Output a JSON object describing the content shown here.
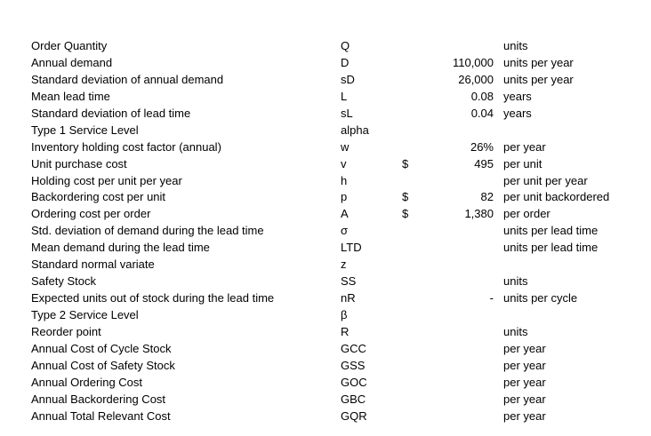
{
  "rows": [
    {
      "label": "Order Quantity",
      "symbol": "Q",
      "currency": "",
      "value": "",
      "unit": "units"
    },
    {
      "label": "Annual demand",
      "symbol": "D",
      "currency": "",
      "value": "110,000",
      "unit": "units per year"
    },
    {
      "label": "Standard deviation of annual demand",
      "symbol": "sD",
      "currency": "",
      "value": "26,000",
      "unit": "units per year"
    },
    {
      "label": "Mean lead time",
      "symbol": "L",
      "currency": "",
      "value": "0.08",
      "unit": "years"
    },
    {
      "label": "Standard deviation of lead time",
      "symbol": "sL",
      "currency": "",
      "value": "0.04",
      "unit": "years"
    },
    {
      "label": "Type 1 Service Level",
      "symbol": "alpha",
      "currency": "",
      "value": "",
      "unit": ""
    },
    {
      "label": "Inventory holding cost factor (annual)",
      "symbol": "w",
      "currency": "",
      "value": "26%",
      "unit": "per year"
    },
    {
      "label": "Unit purchase cost",
      "symbol": "v",
      "currency": "$",
      "value": "495",
      "unit": "per unit"
    },
    {
      "label": "Holding cost per unit per year",
      "symbol": "h",
      "currency": "",
      "value": "",
      "unit": "per unit per year"
    },
    {
      "label": "Backordering cost per unit",
      "symbol": "p",
      "currency": "$",
      "value": "82",
      "unit": "per unit backordered"
    },
    {
      "label": "Ordering cost per order",
      "symbol": "A",
      "currency": "$",
      "value": "1,380",
      "unit": "per order"
    },
    {
      "label": "Std. deviation of demand during the lead time",
      "symbol": "σ",
      "currency": "",
      "value": "",
      "unit": "units per lead time"
    },
    {
      "label": "Mean demand during the lead time",
      "symbol": "LTD",
      "currency": "",
      "value": "",
      "unit": "units per lead time"
    },
    {
      "label": "Standard normal variate",
      "symbol": "z",
      "currency": "",
      "value": "",
      "unit": ""
    },
    {
      "label": "Safety Stock",
      "symbol": "SS",
      "currency": "",
      "value": "",
      "unit": "units"
    },
    {
      "label": "Expected units out of stock during the lead time",
      "symbol": "nR",
      "currency": "",
      "value": "-",
      "unit": "units per cycle"
    },
    {
      "label": "Type 2 Service Level",
      "symbol": "β",
      "currency": "",
      "value": "",
      "unit": ""
    },
    {
      "label": "Reorder point",
      "symbol": "R",
      "currency": "",
      "value": "",
      "unit": "units"
    },
    {
      "label": "Annual Cost of Cycle Stock",
      "symbol": "GCC",
      "currency": "",
      "value": "",
      "unit": "per year"
    },
    {
      "label": "Annual Cost of Safety Stock",
      "symbol": "GSS",
      "currency": "",
      "value": "",
      "unit": "per year"
    },
    {
      "label": "Annual Ordering Cost",
      "symbol": "GOC",
      "currency": "",
      "value": "",
      "unit": "per year"
    },
    {
      "label": "Annual Backordering Cost",
      "symbol": "GBC",
      "currency": "",
      "value": "",
      "unit": "per year"
    },
    {
      "label": "Annual Total Relevant Cost",
      "symbol": "GQR",
      "currency": "",
      "value": "",
      "unit": "per year"
    }
  ]
}
